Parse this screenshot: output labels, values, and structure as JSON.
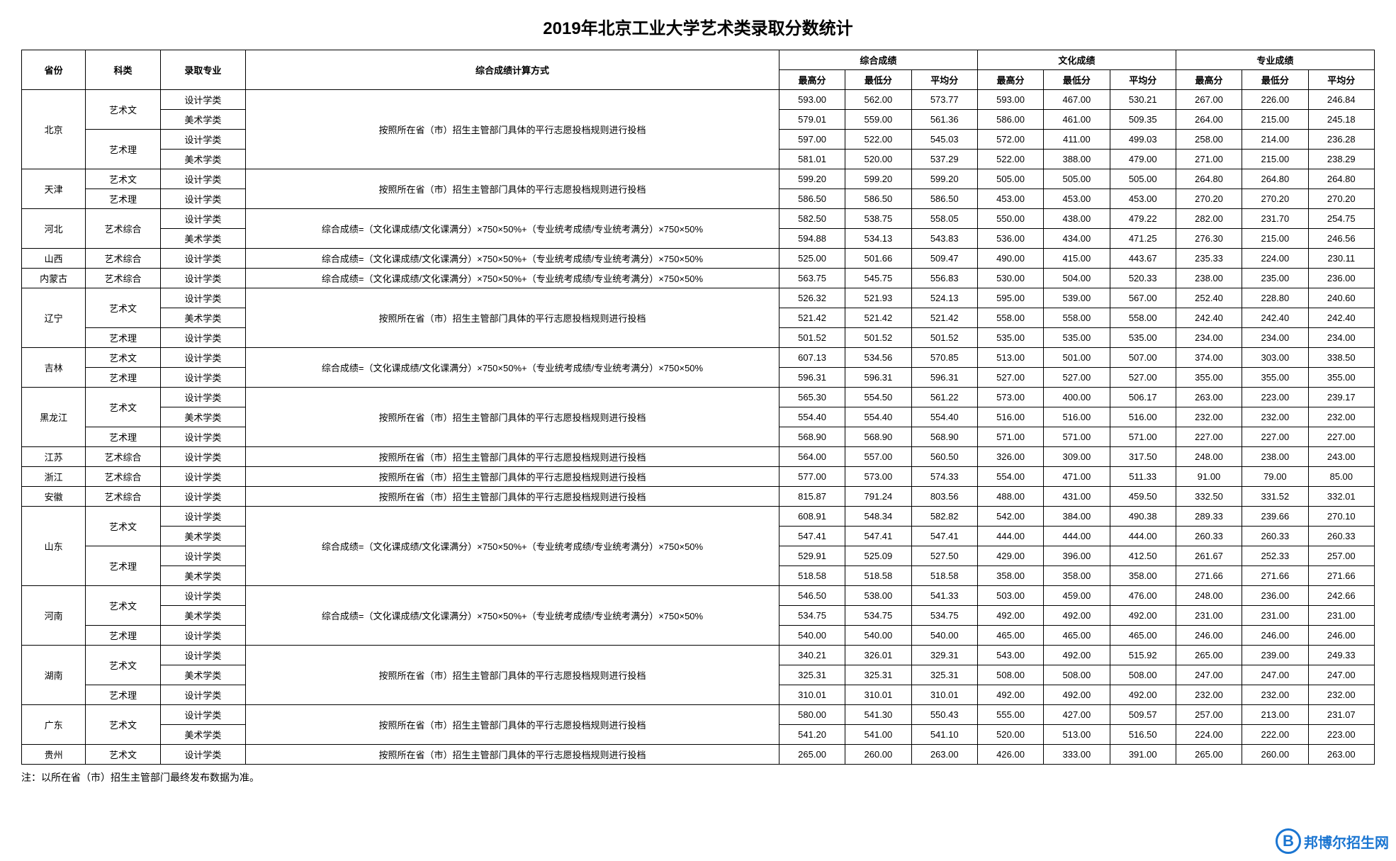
{
  "title": "2019年北京工业大学艺术类录取分数统计",
  "columns": {
    "province": "省份",
    "category": "科类",
    "major": "录取专业",
    "formula": "综合成绩计算方式",
    "group1": "综合成绩",
    "group2": "文化成绩",
    "group3": "专业成绩",
    "max": "最高分",
    "min": "最低分",
    "avg": "平均分"
  },
  "footnote": "注：以所在省（市）招生主管部门最终发布数据为准。",
  "watermark": {
    "icon": "B",
    "text": "邦博尔招生网"
  },
  "formula_text": {
    "parallel": "按照所在省（市）招生主管部门具体的平行志愿投档规则进行投档",
    "composite": "综合成绩=（文化课成绩/文化课满分）×750×50%+（专业统考成绩/专业统考满分）×750×50%"
  },
  "rows": [
    {
      "province": "北京",
      "province_rowspan": 4,
      "category": "艺术文",
      "category_rowspan": 2,
      "major": "设计学类",
      "formula": "parallel",
      "formula_rowspan": 4,
      "scores": [
        "593.00",
        "562.00",
        "573.77",
        "593.00",
        "467.00",
        "530.21",
        "267.00",
        "226.00",
        "246.84"
      ]
    },
    {
      "major": "美术学类",
      "scores": [
        "579.01",
        "559.00",
        "561.36",
        "586.00",
        "461.00",
        "509.35",
        "264.00",
        "215.00",
        "245.18"
      ]
    },
    {
      "category": "艺术理",
      "category_rowspan": 2,
      "major": "设计学类",
      "scores": [
        "597.00",
        "522.00",
        "545.03",
        "572.00",
        "411.00",
        "499.03",
        "258.00",
        "214.00",
        "236.28"
      ]
    },
    {
      "major": "美术学类",
      "scores": [
        "581.01",
        "520.00",
        "537.29",
        "522.00",
        "388.00",
        "479.00",
        "271.00",
        "215.00",
        "238.29"
      ]
    },
    {
      "province": "天津",
      "province_rowspan": 2,
      "category": "艺术文",
      "major": "设计学类",
      "formula": "parallel",
      "formula_rowspan": 2,
      "scores": [
        "599.20",
        "599.20",
        "599.20",
        "505.00",
        "505.00",
        "505.00",
        "264.80",
        "264.80",
        "264.80"
      ]
    },
    {
      "category": "艺术理",
      "major": "设计学类",
      "scores": [
        "586.50",
        "586.50",
        "586.50",
        "453.00",
        "453.00",
        "453.00",
        "270.20",
        "270.20",
        "270.20"
      ]
    },
    {
      "province": "河北",
      "province_rowspan": 2,
      "category": "艺术综合",
      "category_rowspan": 2,
      "major": "设计学类",
      "formula": "composite",
      "formula_rowspan": 2,
      "scores": [
        "582.50",
        "538.75",
        "558.05",
        "550.00",
        "438.00",
        "479.22",
        "282.00",
        "231.70",
        "254.75"
      ]
    },
    {
      "major": "美术学类",
      "scores": [
        "594.88",
        "534.13",
        "543.83",
        "536.00",
        "434.00",
        "471.25",
        "276.30",
        "215.00",
        "246.56"
      ]
    },
    {
      "province": "山西",
      "category": "艺术综合",
      "major": "设计学类",
      "formula": "composite",
      "scores": [
        "525.00",
        "501.66",
        "509.47",
        "490.00",
        "415.00",
        "443.67",
        "235.33",
        "224.00",
        "230.11"
      ]
    },
    {
      "province": "内蒙古",
      "category": "艺术综合",
      "major": "设计学类",
      "formula": "composite",
      "scores": [
        "563.75",
        "545.75",
        "556.83",
        "530.00",
        "504.00",
        "520.33",
        "238.00",
        "235.00",
        "236.00"
      ]
    },
    {
      "province": "辽宁",
      "province_rowspan": 3,
      "category": "艺术文",
      "category_rowspan": 2,
      "major": "设计学类",
      "formula": "parallel",
      "formula_rowspan": 3,
      "scores": [
        "526.32",
        "521.93",
        "524.13",
        "595.00",
        "539.00",
        "567.00",
        "252.40",
        "228.80",
        "240.60"
      ]
    },
    {
      "major": "美术学类",
      "scores": [
        "521.42",
        "521.42",
        "521.42",
        "558.00",
        "558.00",
        "558.00",
        "242.40",
        "242.40",
        "242.40"
      ]
    },
    {
      "category": "艺术理",
      "major": "设计学类",
      "scores": [
        "501.52",
        "501.52",
        "501.52",
        "535.00",
        "535.00",
        "535.00",
        "234.00",
        "234.00",
        "234.00"
      ]
    },
    {
      "province": "吉林",
      "province_rowspan": 2,
      "category": "艺术文",
      "major": "设计学类",
      "formula": "composite",
      "formula_rowspan": 2,
      "scores": [
        "607.13",
        "534.56",
        "570.85",
        "513.00",
        "501.00",
        "507.00",
        "374.00",
        "303.00",
        "338.50"
      ]
    },
    {
      "category": "艺术理",
      "major": "设计学类",
      "scores": [
        "596.31",
        "596.31",
        "596.31",
        "527.00",
        "527.00",
        "527.00",
        "355.00",
        "355.00",
        "355.00"
      ]
    },
    {
      "province": "黑龙江",
      "province_rowspan": 3,
      "category": "艺术文",
      "category_rowspan": 2,
      "major": "设计学类",
      "formula": "parallel",
      "formula_rowspan": 3,
      "scores": [
        "565.30",
        "554.50",
        "561.22",
        "573.00",
        "400.00",
        "506.17",
        "263.00",
        "223.00",
        "239.17"
      ]
    },
    {
      "major": "美术学类",
      "scores": [
        "554.40",
        "554.40",
        "554.40",
        "516.00",
        "516.00",
        "516.00",
        "232.00",
        "232.00",
        "232.00"
      ]
    },
    {
      "category": "艺术理",
      "major": "设计学类",
      "scores": [
        "568.90",
        "568.90",
        "568.90",
        "571.00",
        "571.00",
        "571.00",
        "227.00",
        "227.00",
        "227.00"
      ]
    },
    {
      "province": "江苏",
      "category": "艺术综合",
      "major": "设计学类",
      "formula": "parallel",
      "scores": [
        "564.00",
        "557.00",
        "560.50",
        "326.00",
        "309.00",
        "317.50",
        "248.00",
        "238.00",
        "243.00"
      ]
    },
    {
      "province": "浙江",
      "category": "艺术综合",
      "major": "设计学类",
      "formula": "parallel",
      "scores": [
        "577.00",
        "573.00",
        "574.33",
        "554.00",
        "471.00",
        "511.33",
        "91.00",
        "79.00",
        "85.00"
      ]
    },
    {
      "province": "安徽",
      "category": "艺术综合",
      "major": "设计学类",
      "formula": "parallel",
      "scores": [
        "815.87",
        "791.24",
        "803.56",
        "488.00",
        "431.00",
        "459.50",
        "332.50",
        "331.52",
        "332.01"
      ]
    },
    {
      "province": "山东",
      "province_rowspan": 4,
      "category": "艺术文",
      "category_rowspan": 2,
      "major": "设计学类",
      "formula": "composite",
      "formula_rowspan": 4,
      "scores": [
        "608.91",
        "548.34",
        "582.82",
        "542.00",
        "384.00",
        "490.38",
        "289.33",
        "239.66",
        "270.10"
      ]
    },
    {
      "major": "美术学类",
      "scores": [
        "547.41",
        "547.41",
        "547.41",
        "444.00",
        "444.00",
        "444.00",
        "260.33",
        "260.33",
        "260.33"
      ]
    },
    {
      "category": "艺术理",
      "category_rowspan": 2,
      "major": "设计学类",
      "scores": [
        "529.91",
        "525.09",
        "527.50",
        "429.00",
        "396.00",
        "412.50",
        "261.67",
        "252.33",
        "257.00"
      ]
    },
    {
      "major": "美术学类",
      "scores": [
        "518.58",
        "518.58",
        "518.58",
        "358.00",
        "358.00",
        "358.00",
        "271.66",
        "271.66",
        "271.66"
      ]
    },
    {
      "province": "河南",
      "province_rowspan": 3,
      "category": "艺术文",
      "category_rowspan": 2,
      "major": "设计学类",
      "formula": "composite",
      "formula_rowspan": 3,
      "scores": [
        "546.50",
        "538.00",
        "541.33",
        "503.00",
        "459.00",
        "476.00",
        "248.00",
        "236.00",
        "242.66"
      ]
    },
    {
      "major": "美术学类",
      "scores": [
        "534.75",
        "534.75",
        "534.75",
        "492.00",
        "492.00",
        "492.00",
        "231.00",
        "231.00",
        "231.00"
      ]
    },
    {
      "category": "艺术理",
      "major": "设计学类",
      "scores": [
        "540.00",
        "540.00",
        "540.00",
        "465.00",
        "465.00",
        "465.00",
        "246.00",
        "246.00",
        "246.00"
      ]
    },
    {
      "province": "湖南",
      "province_rowspan": 3,
      "category": "艺术文",
      "category_rowspan": 2,
      "major": "设计学类",
      "formula": "parallel",
      "formula_rowspan": 3,
      "scores": [
        "340.21",
        "326.01",
        "329.31",
        "543.00",
        "492.00",
        "515.92",
        "265.00",
        "239.00",
        "249.33"
      ]
    },
    {
      "major": "美术学类",
      "scores": [
        "325.31",
        "325.31",
        "325.31",
        "508.00",
        "508.00",
        "508.00",
        "247.00",
        "247.00",
        "247.00"
      ]
    },
    {
      "category": "艺术理",
      "major": "设计学类",
      "scores": [
        "310.01",
        "310.01",
        "310.01",
        "492.00",
        "492.00",
        "492.00",
        "232.00",
        "232.00",
        "232.00"
      ]
    },
    {
      "province": "广东",
      "province_rowspan": 2,
      "category": "艺术文",
      "category_rowspan": 2,
      "major": "设计学类",
      "formula": "parallel",
      "formula_rowspan": 2,
      "scores": [
        "580.00",
        "541.30",
        "550.43",
        "555.00",
        "427.00",
        "509.57",
        "257.00",
        "213.00",
        "231.07"
      ]
    },
    {
      "major": "美术学类",
      "scores": [
        "541.20",
        "541.00",
        "541.10",
        "520.00",
        "513.00",
        "516.50",
        "224.00",
        "222.00",
        "223.00"
      ]
    },
    {
      "province": "贵州",
      "category": "艺术文",
      "major": "设计学类",
      "formula": "parallel",
      "scores": [
        "265.00",
        "260.00",
        "263.00",
        "426.00",
        "333.00",
        "391.00",
        "265.00",
        "260.00",
        "263.00"
      ]
    }
  ]
}
